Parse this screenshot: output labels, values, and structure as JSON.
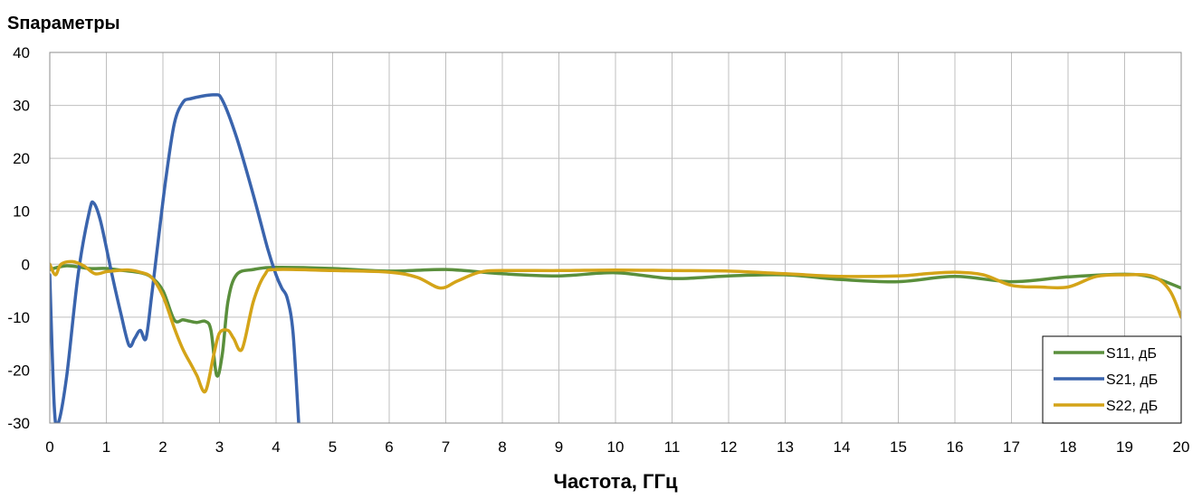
{
  "chart_data": {
    "type": "line",
    "title": "Sпараметры",
    "xlabel": "Частота, ГГц",
    "ylabel": "",
    "xlim": [
      0,
      20
    ],
    "ylim": [
      -30,
      40
    ],
    "xticks": [
      0,
      1,
      2,
      3,
      4,
      5,
      6,
      7,
      8,
      9,
      10,
      11,
      12,
      13,
      14,
      15,
      16,
      17,
      18,
      19,
      20
    ],
    "yticks": [
      40,
      30,
      20,
      10,
      0,
      -10,
      -20,
      -30
    ],
    "ytick_labels": [
      "40",
      "30",
      "20",
      "10",
      "0",
      "-10",
      "-20",
      "-30"
    ],
    "grid": true,
    "legend_position": "bottom-right",
    "series": [
      {
        "name": "S11, дБ",
        "color": "#5a8f3c",
        "points": [
          [
            0,
            -1
          ],
          [
            0.3,
            -0.3
          ],
          [
            0.7,
            -0.8
          ],
          [
            1.0,
            -0.8
          ],
          [
            1.3,
            -1.2
          ],
          [
            1.6,
            -1.6
          ],
          [
            1.8,
            -2.5
          ],
          [
            2.0,
            -5
          ],
          [
            2.2,
            -10.5
          ],
          [
            2.35,
            -10.5
          ],
          [
            2.45,
            -10.7
          ],
          [
            2.6,
            -11
          ],
          [
            2.75,
            -10.8
          ],
          [
            2.85,
            -12.5
          ],
          [
            2.95,
            -21
          ],
          [
            3.05,
            -17
          ],
          [
            3.15,
            -7
          ],
          [
            3.3,
            -2
          ],
          [
            3.6,
            -1
          ],
          [
            4.0,
            -0.6
          ],
          [
            5,
            -0.8
          ],
          [
            6,
            -1.3
          ],
          [
            7,
            -1.0
          ],
          [
            8,
            -1.8
          ],
          [
            9,
            -2.2
          ],
          [
            10,
            -1.6
          ],
          [
            11,
            -2.7
          ],
          [
            12,
            -2.2
          ],
          [
            13,
            -2.0
          ],
          [
            14,
            -2.9
          ],
          [
            15,
            -3.3
          ],
          [
            16,
            -2.3
          ],
          [
            17,
            -3.3
          ],
          [
            18,
            -2.4
          ],
          [
            19,
            -1.9
          ],
          [
            19.5,
            -2.5
          ],
          [
            20,
            -4.5
          ]
        ]
      },
      {
        "name": "S21, дБ",
        "color": "#3a64ad",
        "points": [
          [
            0,
            -2
          ],
          [
            0.08,
            -27
          ],
          [
            0.15,
            -30
          ],
          [
            0.3,
            -21
          ],
          [
            0.5,
            -2
          ],
          [
            0.7,
            10
          ],
          [
            0.78,
            11.5
          ],
          [
            0.9,
            8
          ],
          [
            1.1,
            -2
          ],
          [
            1.25,
            -9
          ],
          [
            1.4,
            -15.3
          ],
          [
            1.5,
            -14
          ],
          [
            1.6,
            -12.5
          ],
          [
            1.7,
            -14
          ],
          [
            1.8,
            -6
          ],
          [
            1.9,
            3
          ],
          [
            2.05,
            16
          ],
          [
            2.2,
            26.5
          ],
          [
            2.35,
            30.5
          ],
          [
            2.5,
            31.3
          ],
          [
            2.9,
            32
          ],
          [
            3.05,
            31
          ],
          [
            3.3,
            24
          ],
          [
            3.6,
            13
          ],
          [
            3.85,
            3
          ],
          [
            4.0,
            -2
          ],
          [
            4.1,
            -4.5
          ],
          [
            4.2,
            -6.5
          ],
          [
            4.3,
            -13
          ],
          [
            4.4,
            -30
          ]
        ]
      },
      {
        "name": "S22, дБ",
        "color": "#d4a418",
        "points": [
          [
            0,
            0
          ],
          [
            0.1,
            -2
          ],
          [
            0.2,
            0
          ],
          [
            0.4,
            0.5
          ],
          [
            0.6,
            -0.3
          ],
          [
            0.8,
            -1.8
          ],
          [
            1.0,
            -1.4
          ],
          [
            1.2,
            -1.2
          ],
          [
            1.4,
            -1.1
          ],
          [
            1.6,
            -1.5
          ],
          [
            1.8,
            -2.5
          ],
          [
            2.0,
            -6
          ],
          [
            2.2,
            -12
          ],
          [
            2.35,
            -16
          ],
          [
            2.5,
            -19
          ],
          [
            2.6,
            -21
          ],
          [
            2.75,
            -24
          ],
          [
            2.9,
            -17
          ],
          [
            3.0,
            -13
          ],
          [
            3.15,
            -12.5
          ],
          [
            3.25,
            -14
          ],
          [
            3.4,
            -16
          ],
          [
            3.6,
            -7
          ],
          [
            3.8,
            -2
          ],
          [
            4.0,
            -1
          ],
          [
            5,
            -1.2
          ],
          [
            6,
            -1.5
          ],
          [
            6.5,
            -2.5
          ],
          [
            6.9,
            -4.5
          ],
          [
            7.2,
            -3.2
          ],
          [
            7.6,
            -1.5
          ],
          [
            8,
            -1.2
          ],
          [
            9,
            -1.2
          ],
          [
            10,
            -1.1
          ],
          [
            11,
            -1.2
          ],
          [
            12,
            -1.3
          ],
          [
            13,
            -1.8
          ],
          [
            14,
            -2.3
          ],
          [
            15,
            -2.2
          ],
          [
            15.5,
            -1.8
          ],
          [
            16,
            -1.5
          ],
          [
            16.5,
            -2.0
          ],
          [
            17,
            -4.0
          ],
          [
            17.5,
            -4.3
          ],
          [
            18,
            -4.3
          ],
          [
            18.5,
            -2.3
          ],
          [
            19,
            -2.0
          ],
          [
            19.5,
            -2.3
          ],
          [
            19.8,
            -5
          ],
          [
            20,
            -10
          ]
        ]
      }
    ]
  }
}
